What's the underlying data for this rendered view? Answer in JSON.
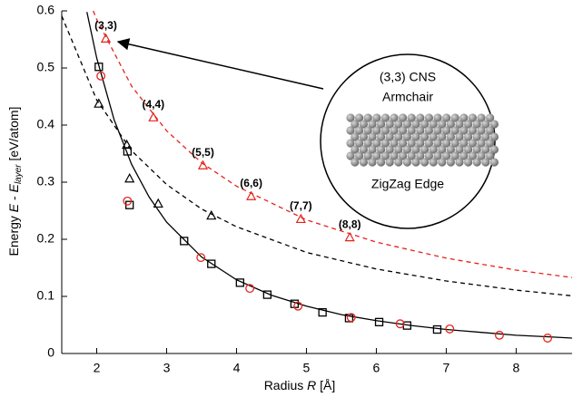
{
  "chart_data": {
    "type": "scatter",
    "x_label": {
      "main": "Radius ",
      "italic": "R",
      "unit": " [Å]"
    },
    "y_label": {
      "main": "Energy ",
      "italic": "E",
      "mid": " - ",
      "italic2": "E",
      "subscript": "layer",
      "unit": " [eV/atom]"
    },
    "xlim": [
      1.5,
      8.8
    ],
    "ylim": [
      0,
      0.6
    ],
    "xticks": [
      2,
      3,
      4,
      5,
      6,
      7,
      8
    ],
    "yticks": [
      0,
      0.1,
      0.2,
      0.3,
      0.4,
      0.5,
      0.6
    ],
    "inset_title": "(3,3) CNS",
    "inset_subtitle": "Armchair",
    "inset_caption": "ZigZag Edge",
    "series": [
      {
        "style": "solid",
        "color": "#000000",
        "x": [
          1.86,
          2,
          2.25,
          2.5,
          2.75,
          3,
          3.5,
          4,
          4.5,
          5,
          5.5,
          6,
          6.5,
          7,
          7.5,
          8,
          8.5,
          8.8
        ],
        "values": [
          0.598,
          0.5175,
          0.409,
          0.331,
          0.274,
          0.23,
          0.169,
          0.129,
          0.102,
          0.083,
          0.068,
          0.0575,
          0.049,
          0.042,
          0.037,
          0.032,
          0.029,
          0.027
        ]
      },
      {
        "style": "dashed",
        "color": "#000000",
        "x": [
          1.5,
          2,
          2.5,
          3,
          3.5,
          4,
          5,
          6,
          7,
          8,
          8.8
        ],
        "values": [
          0.591,
          0.444,
          0.355,
          0.296,
          0.253,
          0.222,
          0.177,
          0.148,
          0.127,
          0.111,
          0.101
        ]
      },
      {
        "style": "dashed",
        "color": "#e3231c",
        "x": [
          1.95,
          2,
          2.5,
          3,
          3.5,
          4,
          5,
          6,
          7,
          8,
          8.8
        ],
        "values": [
          0.6,
          0.585,
          0.468,
          0.39,
          0.334,
          0.293,
          0.234,
          0.195,
          0.167,
          0.146,
          0.133
        ]
      },
      {
        "style": "square",
        "color": "#000000",
        "x": [
          2.03,
          2.44,
          2.47,
          3.25,
          3.64,
          4.05,
          4.44,
          4.83,
          5.23,
          5.61,
          6.04,
          6.44,
          6.87
        ],
        "values": [
          0.502,
          0.354,
          0.26,
          0.197,
          0.157,
          0.124,
          0.103,
          0.087,
          0.072,
          0.062,
          0.055,
          0.049,
          0.042
        ]
      },
      {
        "style": "circle",
        "color": "#e3231c",
        "x": [
          2.06,
          2.44,
          3.49,
          4.19,
          4.88,
          5.64,
          6.34,
          7.05,
          7.76,
          8.45
        ],
        "values": [
          0.486,
          0.267,
          0.168,
          0.114,
          0.083,
          0.063,
          0.052,
          0.043,
          0.032,
          0.027
        ]
      },
      {
        "style": "triangle",
        "color": "#000000",
        "x": [
          2.03,
          2.43,
          2.47,
          2.88,
          3.64
        ],
        "values": [
          0.437,
          0.365,
          0.306,
          0.262,
          0.241
        ]
      },
      {
        "style": "triangle",
        "color": "#e3231c",
        "x": [
          2.13,
          2.81,
          3.52,
          4.21,
          4.92,
          5.62
        ],
        "values": [
          0.551,
          0.413,
          0.329,
          0.275,
          0.235,
          0.203
        ],
        "point_labels": [
          "(3,3)",
          "(4,4)",
          "(5,5)",
          "(6,6)",
          "(7,7)",
          "(8,8)"
        ]
      }
    ]
  }
}
